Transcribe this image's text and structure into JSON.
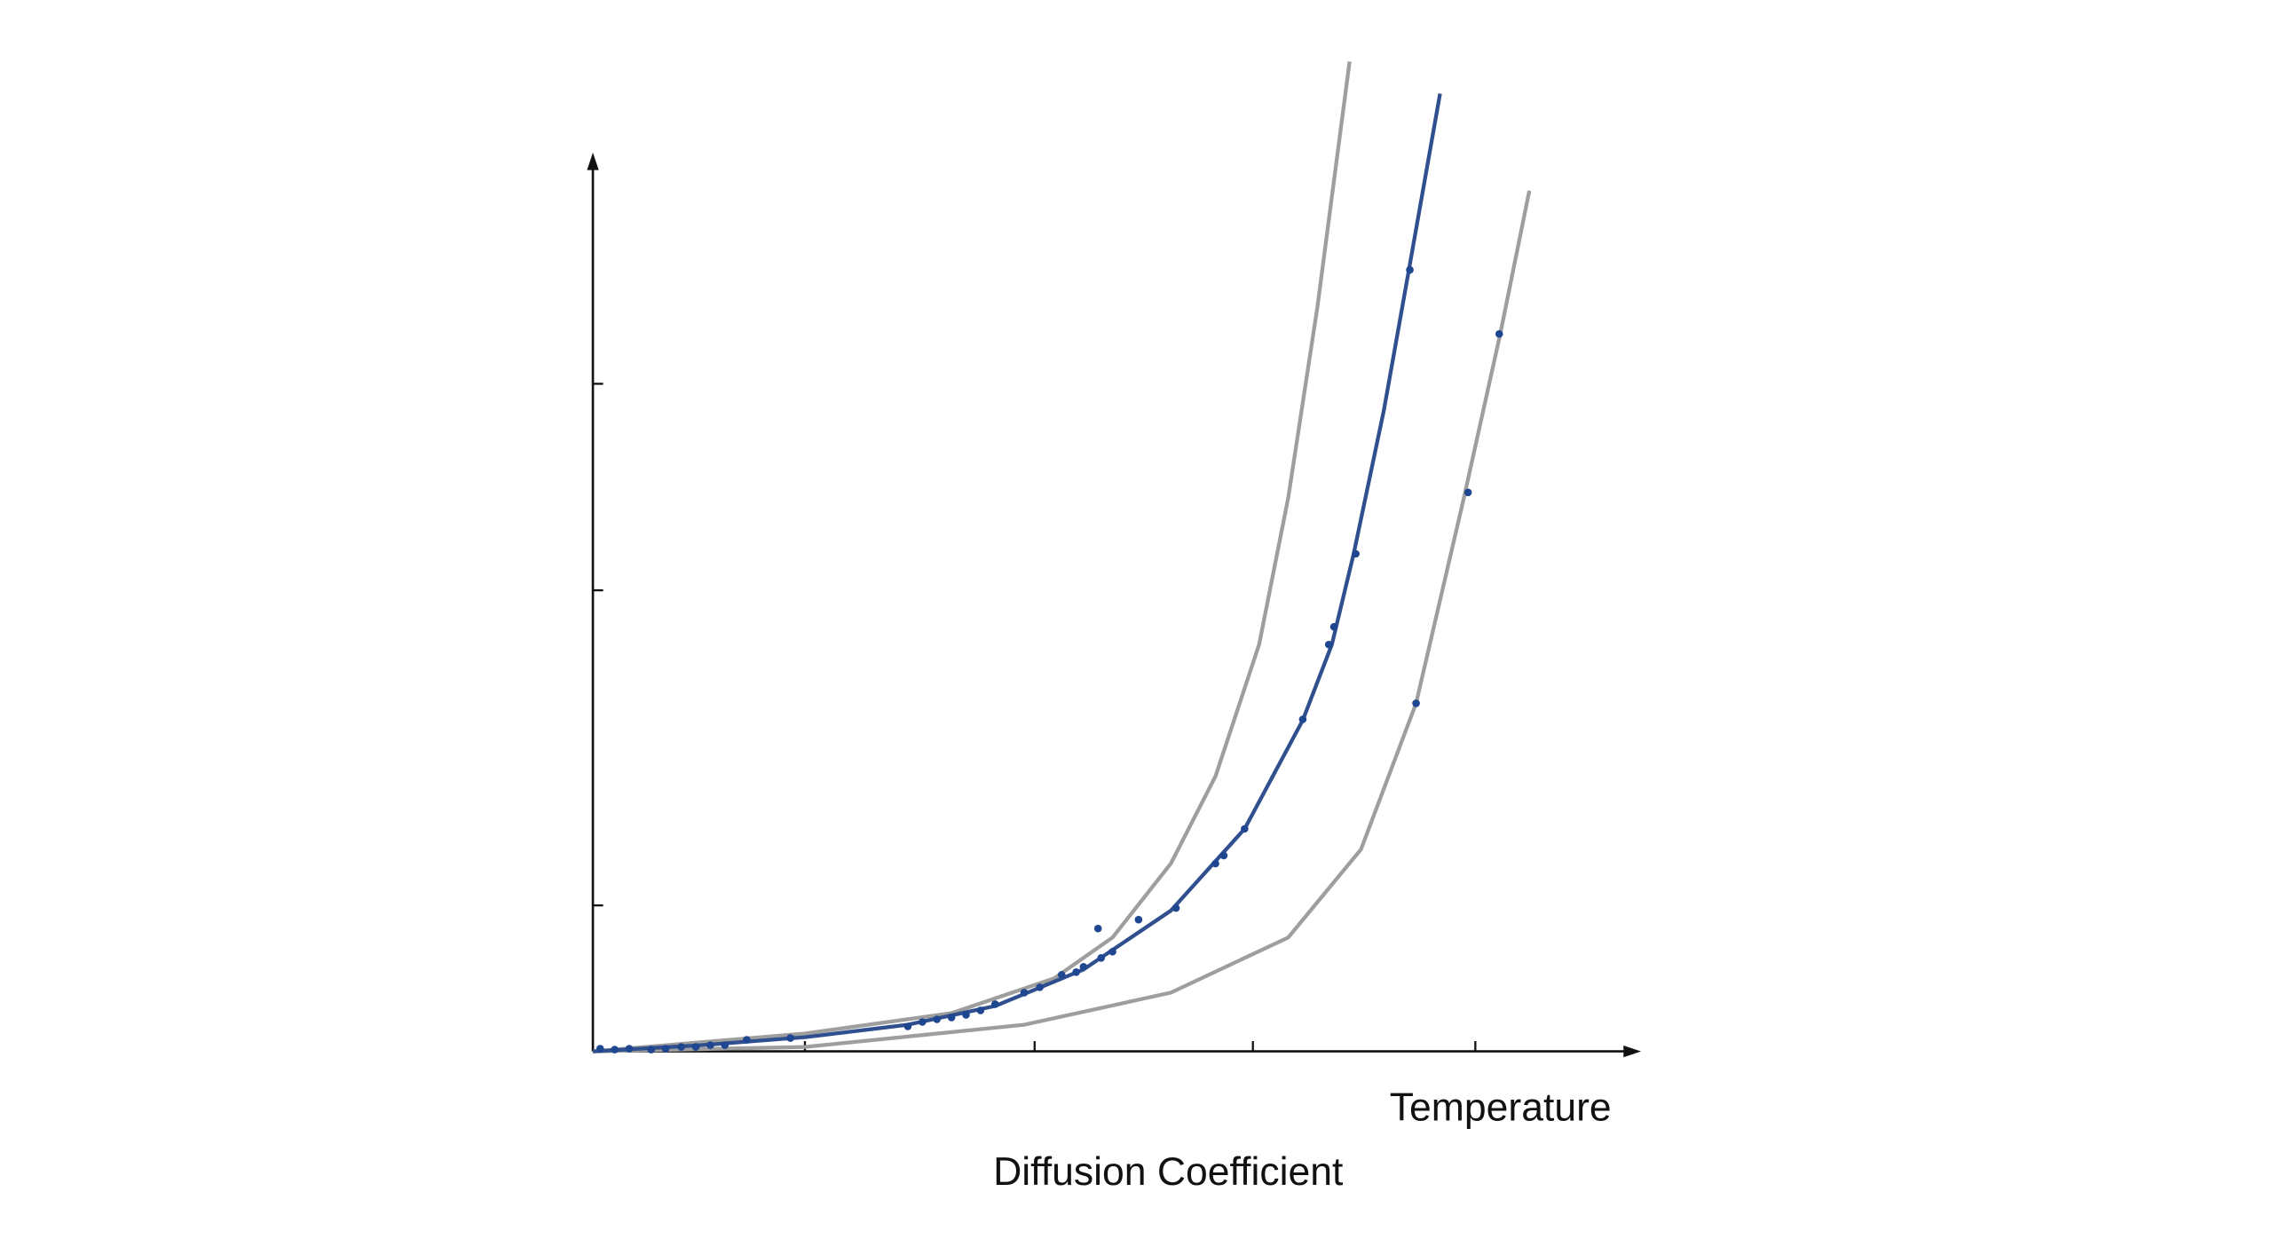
{
  "chart_data": {
    "type": "scatter",
    "xlabel": "Temperature",
    "ylabel": "Diffusion Coefficient",
    "xlim": [
      0,
      10
    ],
    "ylim": [
      0,
      10
    ],
    "xticks": [
      2.04,
      4.25,
      6.35,
      8.49
    ],
    "yticks": [
      1.64,
      5.18,
      7.5
    ],
    "series": [
      {
        "type": "line",
        "color": "#9e9e9e",
        "x": [
          0,
          2.04,
          3.45,
          4.44,
          5.0,
          5.56,
          5.99,
          6.41,
          6.69,
          6.97,
          7.28
        ],
        "values": [
          0,
          0.2,
          0.43,
          0.82,
          1.28,
          2.11,
          3.09,
          4.57,
          6.22,
          8.36,
          11.12
        ]
      },
      {
        "type": "line",
        "color": "#9e9e9e",
        "x": [
          0,
          2.04,
          4.15,
          5.56,
          6.69,
          7.39,
          7.92,
          8.38,
          8.73,
          9.01
        ],
        "values": [
          0,
          0.05,
          0.3,
          0.66,
          1.28,
          2.27,
          3.91,
          6.22,
          8.06,
          9.67
        ]
      },
      {
        "type": "line",
        "color": "#2f4f8f",
        "x": [
          0,
          1.06,
          2.04,
          3.03,
          3.87,
          4.72,
          5.56,
          6.27,
          6.83,
          7.11,
          7.32,
          7.61,
          7.85,
          8.15
        ],
        "values": [
          0,
          0.07,
          0.16,
          0.3,
          0.51,
          0.92,
          1.58,
          2.5,
          3.72,
          4.57,
          5.59,
          7.2,
          8.77,
          10.76
        ]
      },
      {
        "type": "scatter",
        "color": "#1f4690",
        "x": [
          0.07,
          0.21,
          0.35,
          0.56,
          0.7,
          0.85,
          0.99,
          1.13,
          1.27,
          1.48,
          1.9,
          3.03,
          3.17,
          3.31,
          3.45,
          3.59,
          3.73,
          3.87,
          4.15,
          4.3,
          4.51,
          4.65,
          4.72,
          4.89,
          5.0,
          4.86,
          5.25,
          5.61,
          5.99,
          6.07,
          6.27,
          6.83,
          7.08,
          7.13,
          7.34,
          7.86,
          7.92,
          8.42,
          8.72
        ],
        "values": [
          0.03,
          0.02,
          0.03,
          0.02,
          0.03,
          0.05,
          0.05,
          0.07,
          0.07,
          0.13,
          0.15,
          0.28,
          0.33,
          0.36,
          0.38,
          0.41,
          0.46,
          0.53,
          0.66,
          0.72,
          0.86,
          0.89,
          0.95,
          1.05,
          1.12,
          1.38,
          1.48,
          1.61,
          2.11,
          2.2,
          2.5,
          3.73,
          4.57,
          4.77,
          5.59,
          8.78,
          3.91,
          6.28,
          8.06
        ]
      }
    ]
  }
}
